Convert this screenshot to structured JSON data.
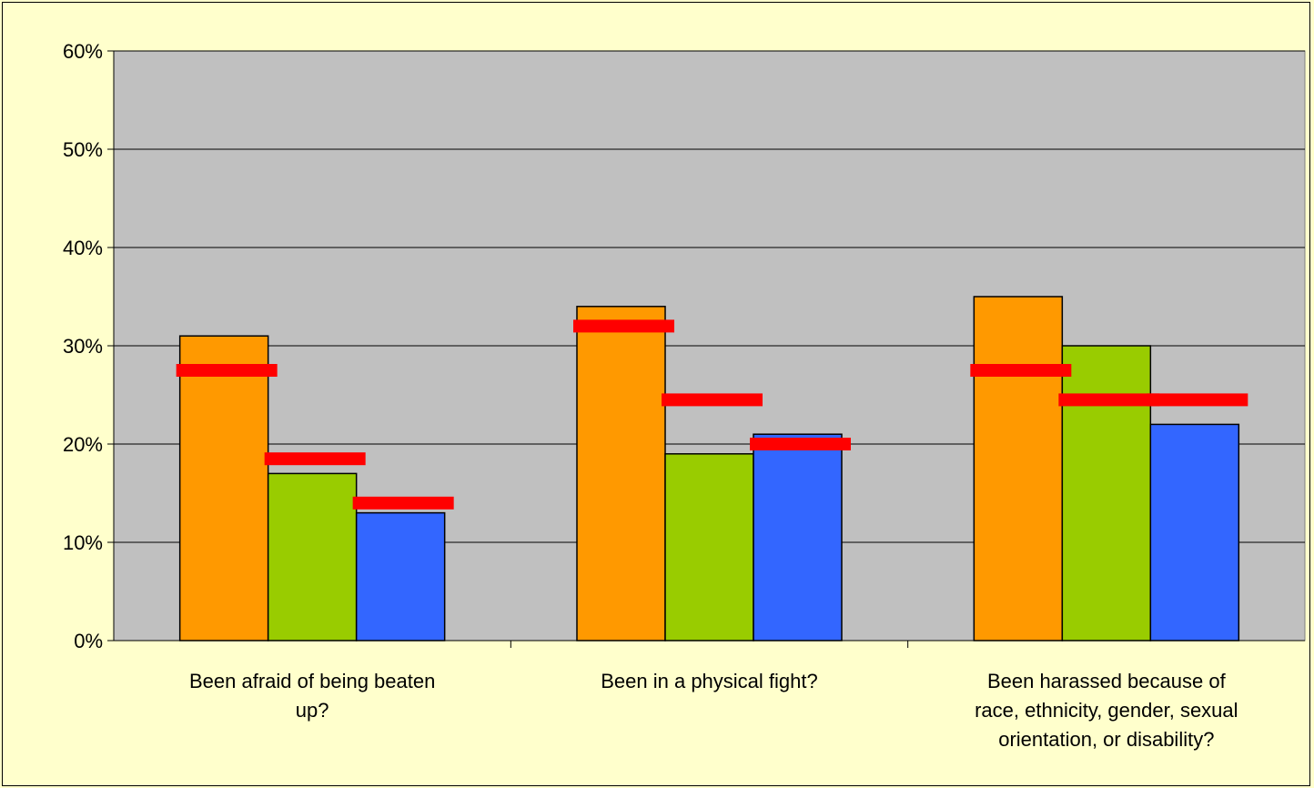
{
  "chart_data": {
    "type": "bar",
    "title": "",
    "xlabel": "",
    "ylabel": "",
    "ylim": [
      0,
      60
    ],
    "yticks": [
      0,
      10,
      20,
      30,
      40,
      50,
      60
    ],
    "ytick_format": "percent",
    "grid": true,
    "legend": "none",
    "categories": [
      [
        "Been afraid of being beaten",
        "up?"
      ],
      [
        "Been in a physical fight?"
      ],
      [
        "Been harassed because of",
        "race, ethnicity, gender, sexual",
        "orientation, or disability?"
      ]
    ],
    "series": [
      {
        "color": "#ff9900",
        "values": [
          31,
          34,
          35
        ]
      },
      {
        "color": "#99cc00",
        "values": [
          17,
          19,
          30
        ]
      },
      {
        "color": "#3366ff",
        "values": [
          13,
          21,
          22
        ]
      }
    ],
    "reference_markers": {
      "color": "#ff0000",
      "values": [
        [
          27.5,
          18.5,
          14
        ],
        [
          32,
          24.5,
          20
        ],
        [
          27.5,
          24.5,
          24.5
        ]
      ]
    },
    "plot_background": "#c0c0c0",
    "page_background": "#ffffcc"
  }
}
